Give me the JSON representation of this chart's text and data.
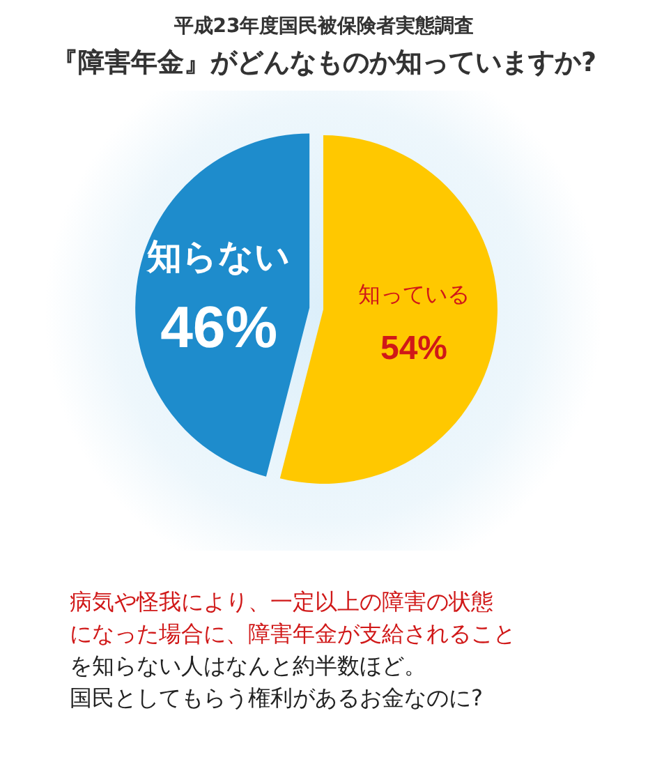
{
  "chart_data": {
    "type": "pie",
    "title": "平成23年度国民被保険者実態調査",
    "subtitle": "『障害年金』がどんなものか知っていますか?",
    "categories": [
      "知っている",
      "知らない"
    ],
    "values": [
      54,
      46
    ],
    "colors": [
      "#ffc800",
      "#1e8ccc"
    ],
    "value_labels": [
      "54%",
      "46%"
    ],
    "annotations": [
      "病気や怪我により、一定以上の障害の状態",
      "になった場合に、障害年金が支給されること",
      "を知らない人はなんと約半数ほど。",
      "国民としてもらう権利があるお金なのに?"
    ]
  }
}
